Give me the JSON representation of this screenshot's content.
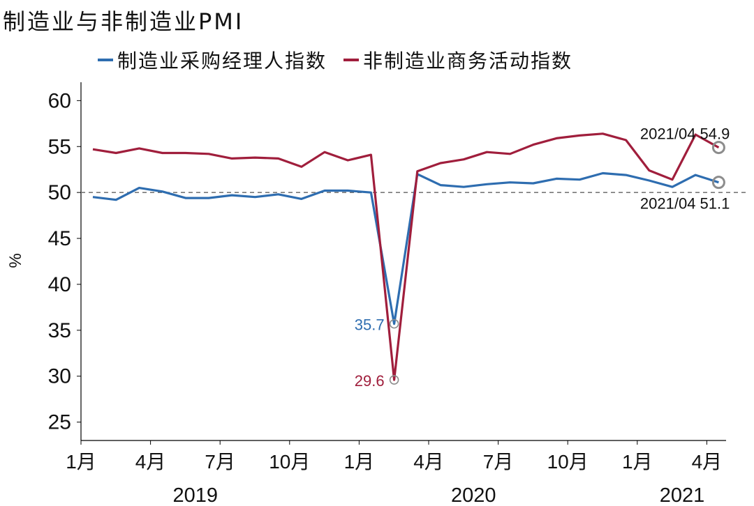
{
  "title": "制造业与非制造业PMI",
  "colors": {
    "manufacturing": "#2E6DB0",
    "non_manufacturing": "#A01E3C",
    "axis": "#000000",
    "reference": "#777777",
    "marker": "#8C8C8C"
  },
  "chart_data": {
    "type": "line",
    "x": [
      "2019-01",
      "2019-02",
      "2019-03",
      "2019-04",
      "2019-05",
      "2019-06",
      "2019-07",
      "2019-08",
      "2019-09",
      "2019-10",
      "2019-11",
      "2019-12",
      "2020-01",
      "2020-02",
      "2020-03",
      "2020-04",
      "2020-05",
      "2020-06",
      "2020-07",
      "2020-08",
      "2020-09",
      "2020-10",
      "2020-11",
      "2020-12",
      "2021-01",
      "2021-02",
      "2021-03",
      "2021-04"
    ],
    "series": [
      {
        "name": "制造业采购经理人指数",
        "color": "#2E6DB0",
        "values": [
          49.5,
          49.2,
          50.5,
          50.1,
          49.4,
          49.4,
          49.7,
          49.5,
          49.8,
          49.3,
          50.2,
          50.2,
          50.0,
          35.7,
          52.0,
          50.8,
          50.6,
          50.9,
          51.1,
          51.0,
          51.5,
          51.4,
          52.1,
          51.9,
          51.3,
          50.6,
          51.9,
          51.1
        ]
      },
      {
        "name": "非制造业商务活动指数",
        "color": "#A01E3C",
        "values": [
          54.7,
          54.3,
          54.8,
          54.3,
          54.3,
          54.2,
          53.7,
          53.8,
          53.7,
          52.8,
          54.4,
          53.5,
          54.1,
          29.6,
          52.3,
          53.2,
          53.6,
          54.4,
          54.2,
          55.2,
          55.9,
          56.2,
          56.4,
          55.7,
          52.4,
          51.4,
          56.3,
          54.9
        ]
      }
    ],
    "ylabel": "%",
    "ylim": [
      23,
      62
    ],
    "yticks": [
      25,
      30,
      35,
      40,
      45,
      50,
      55,
      60
    ],
    "xticks": [
      {
        "date": "2019-01",
        "label": "1月"
      },
      {
        "date": "2019-04",
        "label": "4月"
      },
      {
        "date": "2019-07",
        "label": "7月"
      },
      {
        "date": "2019-10",
        "label": "10月"
      },
      {
        "date": "2020-01",
        "label": "1月"
      },
      {
        "date": "2020-04",
        "label": "4月"
      },
      {
        "date": "2020-07",
        "label": "7月"
      },
      {
        "date": "2020-10",
        "label": "10月"
      },
      {
        "date": "2021-01",
        "label": "1月"
      },
      {
        "date": "2021-04",
        "label": "4月"
      }
    ],
    "years": [
      {
        "date": "2019-05",
        "label": "2019"
      },
      {
        "date": "2020-05",
        "label": "2020"
      },
      {
        "date": "2021-02",
        "label": "2021"
      }
    ],
    "reference_line": 50,
    "grid": false,
    "legend_position": "top",
    "annotations": [
      {
        "text": "2021/04 54.9",
        "date": "2021-04",
        "value": 54.9,
        "series": 1,
        "placement": "above-left"
      },
      {
        "text": "2021/04 51.1",
        "date": "2021-04",
        "value": 51.1,
        "series": 0,
        "placement": "below-left"
      },
      {
        "text": "35.7",
        "date": "2020-02",
        "value": 35.7,
        "series": 0,
        "placement": "left"
      },
      {
        "text": "29.6",
        "date": "2020-02",
        "value": 29.6,
        "series": 1,
        "placement": "left"
      }
    ]
  }
}
